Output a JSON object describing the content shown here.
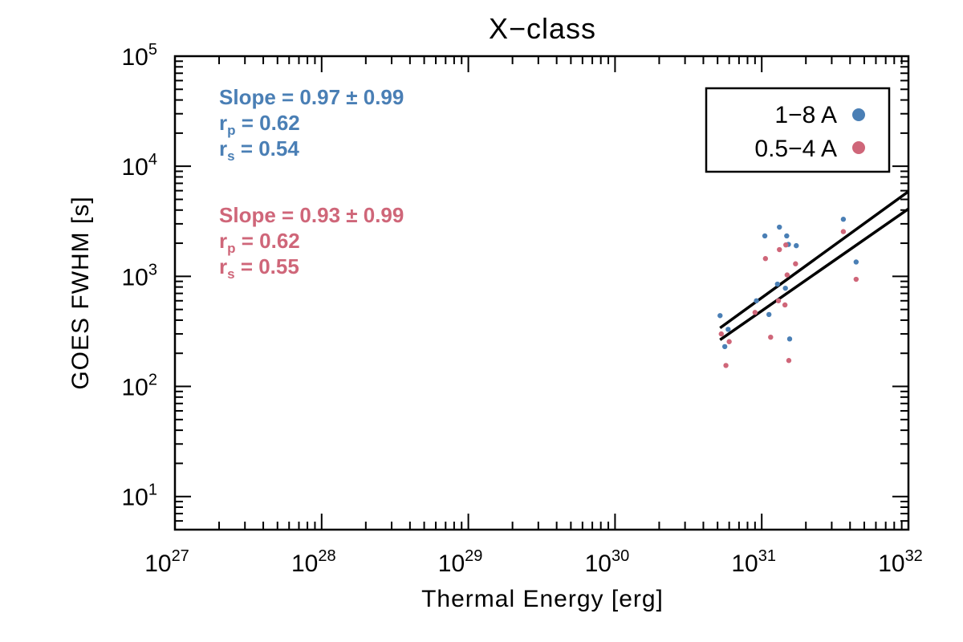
{
  "chart_data": {
    "type": "scatter",
    "title": "X−class",
    "xlabel": "Thermal Energy [erg]",
    "ylabel": "GOES FWHM [s]",
    "xscale": "log",
    "yscale": "log",
    "xlim": [
      1e+27,
      1e+32
    ],
    "ylim": [
      5,
      100000.0
    ],
    "x_tick_labels": [
      {
        "base": "10",
        "exp": "27",
        "value": 1e+27
      },
      {
        "base": "10",
        "exp": "28",
        "value": 1e+28
      },
      {
        "base": "10",
        "exp": "29",
        "value": 1e+29
      },
      {
        "base": "10",
        "exp": "30",
        "value": 1e+30
      },
      {
        "base": "10",
        "exp": "31",
        "value": 1e+31
      },
      {
        "base": "10",
        "exp": "32",
        "value": 1e+32
      }
    ],
    "y_tick_labels": [
      {
        "base": "10",
        "exp": "1",
        "value": 10.0
      },
      {
        "base": "10",
        "exp": "2",
        "value": 100.0
      },
      {
        "base": "10",
        "exp": "3",
        "value": 1000.0
      },
      {
        "base": "10",
        "exp": "4",
        "value": 10000.0
      },
      {
        "base": "10",
        "exp": "5",
        "value": 100000.0
      }
    ],
    "legend": {
      "position": "top-right",
      "entries": [
        {
          "label": "1−8 A",
          "color": "#4a7fb5"
        },
        {
          "label": "0.5−4 A",
          "color": "#cf6679"
        }
      ]
    },
    "series": [
      {
        "name": "1-8 A",
        "color": "#4a7fb5",
        "points": [
          [
            5.2e+30,
            440
          ],
          [
            5.6e+30,
            230
          ],
          [
            5.9e+30,
            330
          ],
          [
            9.2e+30,
            600
          ],
          [
            1.05e+31,
            2330
          ],
          [
            1.12e+31,
            450
          ],
          [
            1.28e+31,
            850
          ],
          [
            1.32e+31,
            2800
          ],
          [
            1.45e+31,
            780
          ],
          [
            1.48e+31,
            2330
          ],
          [
            1.52e+31,
            1950
          ],
          [
            1.55e+31,
            270
          ],
          [
            1.72e+31,
            1900
          ],
          [
            3.6e+31,
            3300
          ],
          [
            4.4e+31,
            1350
          ]
        ],
        "fit_line": {
          "x": [
            5.2e+30,
            1e+32
          ],
          "y": [
            340,
            5900
          ]
        },
        "stats": {
          "slope": "Slope = 0.97 ± 0.99",
          "rp_prefix": "r",
          "rp_sub": "p",
          "rp_value": " = 0.62",
          "rs_prefix": "r",
          "rs_sub": "s",
          "rs_value": " = 0.54"
        }
      },
      {
        "name": "0.5-4 A",
        "color": "#cf6679",
        "points": [
          [
            5.3e+30,
            300
          ],
          [
            5.7e+30,
            155
          ],
          [
            6e+30,
            255
          ],
          [
            9e+30,
            470
          ],
          [
            1.06e+31,
            1450
          ],
          [
            1.15e+31,
            280
          ],
          [
            1.3e+31,
            600
          ],
          [
            1.32e+31,
            1750
          ],
          [
            1.44e+31,
            550
          ],
          [
            1.46e+31,
            1930
          ],
          [
            1.49e+31,
            1030
          ],
          [
            1.53e+31,
            172
          ],
          [
            1.7e+31,
            1300
          ],
          [
            3.6e+31,
            2550
          ],
          [
            4.4e+31,
            940
          ]
        ],
        "fit_line": {
          "x": [
            5.2e+30,
            1e+32
          ],
          "y": [
            265,
            4100
          ]
        },
        "stats": {
          "slope": "Slope = 0.93 ± 0.99",
          "rp_prefix": "r",
          "rp_sub": "p",
          "rp_value": " = 0.62",
          "rs_prefix": "r",
          "rs_sub": "s",
          "rs_value": " = 0.55"
        }
      }
    ]
  }
}
